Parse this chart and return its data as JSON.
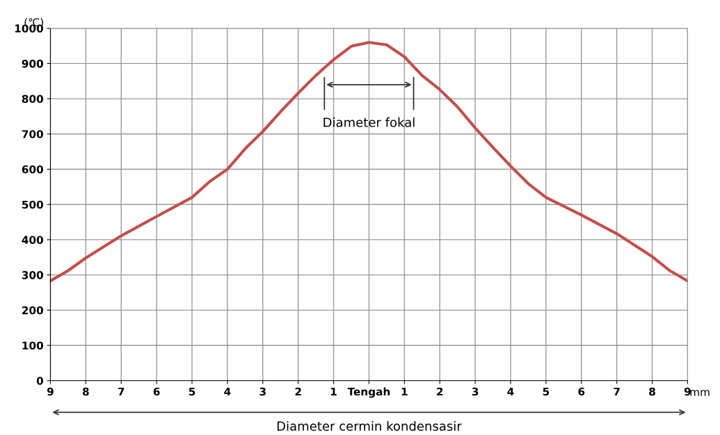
{
  "chart_data": {
    "type": "line",
    "ylabel": "(℃)",
    "xlabel": "mm",
    "x": [
      -9,
      -8.5,
      -8,
      -7,
      -6,
      -5,
      -4.5,
      -4,
      -3.5,
      -3,
      -2.5,
      -2,
      -1.5,
      -1,
      -0.5,
      0,
      0.5,
      1,
      1.5,
      2,
      2.5,
      3,
      3.5,
      4,
      4.5,
      5,
      6,
      7,
      8,
      8.5,
      9
    ],
    "series": [
      {
        "color": "#c0504d",
        "values": [
          283,
          312,
          348,
          411,
          466,
          520,
          565,
          600,
          658,
          707,
          763,
          816,
          866,
          911,
          949,
          960,
          953,
          919,
          866,
          826,
          777,
          717,
          662,
          609,
          559,
          520,
          470,
          417,
          352,
          312,
          283
        ]
      }
    ],
    "xlim": [
      -9,
      9
    ],
    "xticks": [
      {
        "value": -9,
        "label": "9"
      },
      {
        "value": -8,
        "label": "8"
      },
      {
        "value": -7,
        "label": "7"
      },
      {
        "value": -6,
        "label": "6"
      },
      {
        "value": -5,
        "label": "5"
      },
      {
        "value": -4,
        "label": "4"
      },
      {
        "value": -3,
        "label": "3"
      },
      {
        "value": -2,
        "label": "2"
      },
      {
        "value": -1,
        "label": "1"
      },
      {
        "value": 0,
        "label": "Tengah"
      },
      {
        "value": 1,
        "label": "1"
      },
      {
        "value": 2,
        "label": "2"
      },
      {
        "value": 3,
        "label": "3"
      },
      {
        "value": 4,
        "label": "4"
      },
      {
        "value": 5,
        "label": "5"
      },
      {
        "value": 6,
        "label": "6"
      },
      {
        "value": 7,
        "label": "7"
      },
      {
        "value": 8,
        "label": "8"
      },
      {
        "value": 9,
        "label": "9"
      }
    ],
    "ylim": [
      0,
      1000
    ],
    "yticks": [
      0,
      100,
      200,
      300,
      400,
      500,
      600,
      700,
      800,
      900,
      1000
    ],
    "grid": true,
    "marker": "none",
    "line_style": "solid",
    "annotations": [
      "Diameter fokal",
      "Diameter cermin kondensasir"
    ]
  }
}
